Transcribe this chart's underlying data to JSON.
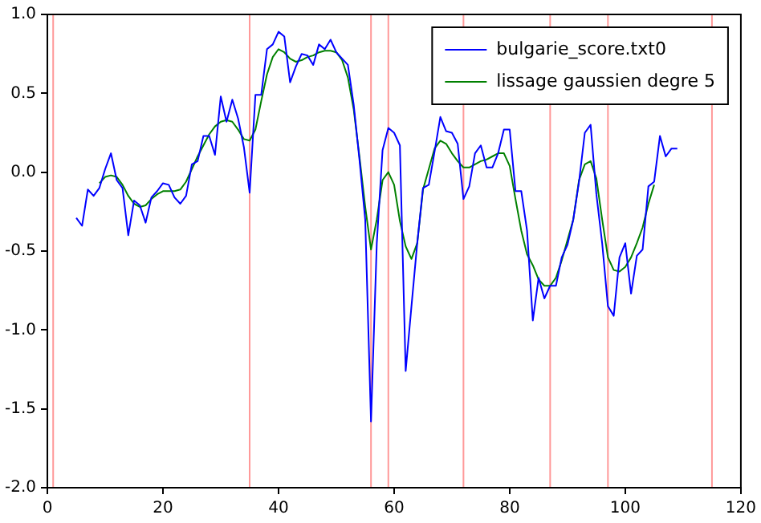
{
  "chart_data": {
    "type": "line",
    "x": [
      5,
      6,
      7,
      8,
      9,
      10,
      11,
      12,
      13,
      14,
      15,
      16,
      17,
      18,
      19,
      20,
      21,
      22,
      23,
      24,
      25,
      26,
      27,
      28,
      29,
      30,
      31,
      32,
      33,
      34,
      35,
      36,
      37,
      38,
      39,
      40,
      41,
      42,
      43,
      44,
      45,
      46,
      47,
      48,
      49,
      50,
      51,
      52,
      53,
      54,
      55,
      56,
      57,
      58,
      59,
      60,
      61,
      62,
      63,
      64,
      65,
      66,
      67,
      68,
      69,
      70,
      71,
      72,
      73,
      74,
      75,
      76,
      77,
      78,
      79,
      80,
      81,
      82,
      83,
      84,
      85,
      86,
      87,
      88,
      89,
      90,
      91,
      92,
      93,
      94,
      95,
      96,
      97,
      98,
      99,
      100,
      101,
      102,
      103,
      104,
      105,
      106,
      107,
      108,
      109
    ],
    "series": [
      {
        "name": "bulgarie_score.txt0",
        "color": "#0000ff",
        "values": [
          -0.29,
          -0.34,
          -0.11,
          -0.15,
          -0.1,
          0.02,
          0.12,
          -0.05,
          -0.1,
          -0.4,
          -0.18,
          -0.21,
          -0.32,
          -0.16,
          -0.12,
          -0.07,
          -0.08,
          -0.16,
          -0.2,
          -0.15,
          0.05,
          0.07,
          0.23,
          0.23,
          0.11,
          0.48,
          0.32,
          0.46,
          0.34,
          0.16,
          -0.13,
          0.49,
          0.49,
          0.78,
          0.81,
          0.89,
          0.86,
          0.57,
          0.67,
          0.75,
          0.74,
          0.68,
          0.81,
          0.78,
          0.84,
          0.76,
          0.72,
          0.68,
          0.43,
          0.08,
          -0.3,
          -1.58,
          -0.45,
          0.14,
          0.28,
          0.25,
          0.17,
          -1.26,
          -0.85,
          -0.45,
          -0.1,
          -0.08,
          0.13,
          0.35,
          0.26,
          0.25,
          0.18,
          -0.17,
          -0.09,
          0.12,
          0.17,
          0.03,
          0.03,
          0.12,
          0.27,
          0.27,
          -0.12,
          -0.12,
          -0.37,
          -0.94,
          -0.67,
          -0.8,
          -0.72,
          -0.72,
          -0.54,
          -0.46,
          -0.3,
          -0.06,
          0.25,
          0.3,
          -0.14,
          -0.45,
          -0.85,
          -0.91,
          -0.54,
          -0.45,
          -0.77,
          -0.53,
          -0.49,
          -0.09,
          -0.06,
          0.23,
          0.1,
          0.15,
          0.15
        ]
      },
      {
        "name": "lissage gaussien degre 5",
        "color": "#008000",
        "values": [
          null,
          null,
          null,
          null,
          -0.07,
          -0.03,
          -0.02,
          -0.03,
          -0.08,
          -0.15,
          -0.2,
          -0.22,
          -0.21,
          -0.17,
          -0.14,
          -0.12,
          -0.12,
          -0.12,
          -0.11,
          -0.06,
          0.02,
          0.1,
          0.17,
          0.24,
          0.29,
          0.32,
          0.33,
          0.32,
          0.27,
          0.21,
          0.2,
          0.27,
          0.45,
          0.62,
          0.73,
          0.78,
          0.76,
          0.72,
          0.7,
          0.71,
          0.73,
          0.74,
          0.76,
          0.77,
          0.77,
          0.76,
          0.71,
          0.6,
          0.4,
          0.1,
          -0.22,
          -0.49,
          -0.3,
          -0.05,
          0.0,
          -0.08,
          -0.31,
          -0.47,
          -0.55,
          -0.45,
          -0.11,
          0.02,
          0.15,
          0.2,
          0.18,
          0.12,
          0.07,
          0.03,
          0.03,
          0.05,
          0.07,
          0.08,
          0.1,
          0.12,
          0.12,
          0.04,
          -0.17,
          -0.37,
          -0.52,
          -0.59,
          -0.68,
          -0.72,
          -0.72,
          -0.67,
          -0.56,
          -0.43,
          -0.3,
          -0.05,
          0.05,
          0.07,
          -0.04,
          -0.3,
          -0.54,
          -0.62,
          -0.63,
          -0.6,
          -0.54,
          -0.45,
          -0.35,
          -0.2,
          -0.08,
          null,
          null,
          null,
          null
        ]
      }
    ],
    "xlim": [
      0,
      120
    ],
    "xticks": [
      0,
      20,
      40,
      60,
      80,
      100,
      120
    ],
    "ylim": [
      -2.0,
      1.0
    ],
    "yticks": [
      {
        "value": -2,
        "label": "-2.0"
      },
      {
        "value": -1.5,
        "label": "-1.5"
      },
      {
        "value": -1,
        "label": "-1.0"
      },
      {
        "value": -0.5,
        "label": "-0.5"
      },
      {
        "value": 0,
        "label": "0.0"
      },
      {
        "value": 0.5,
        "label": "0.5"
      },
      {
        "value": 1,
        "label": "1.0"
      }
    ],
    "ref_lines": [
      {
        "axis": "x",
        "value": 1,
        "color": "#ff9999"
      },
      {
        "axis": "x",
        "value": 35,
        "color": "#ff9999"
      },
      {
        "axis": "x",
        "value": 56,
        "color": "#ff9999"
      },
      {
        "axis": "x",
        "value": 59,
        "color": "#ff9999"
      },
      {
        "axis": "x",
        "value": 72,
        "color": "#ff9999"
      },
      {
        "axis": "x",
        "value": 87,
        "color": "#ff9999"
      },
      {
        "axis": "x",
        "value": 97,
        "color": "#ff9999"
      },
      {
        "axis": "x",
        "value": 115,
        "color": "#ff9999"
      }
    ],
    "grid": false,
    "legend": "top right",
    "marker": "none",
    "line_style": "solid"
  }
}
